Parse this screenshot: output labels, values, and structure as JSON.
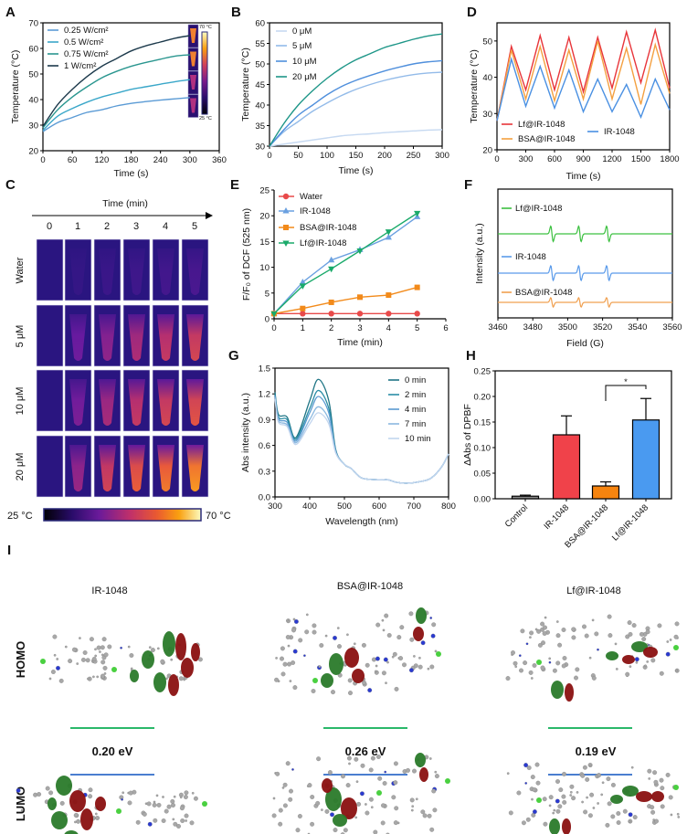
{
  "panel_labels": {
    "A": "A",
    "B": "B",
    "C": "C",
    "D": "D",
    "E": "E",
    "F": "F",
    "G": "G",
    "H": "H",
    "I": "I"
  },
  "chart_data": [
    {
      "id": "A",
      "type": "line",
      "xlabel": "Time (s)",
      "ylabel": "Temperature (°C)",
      "xlim": [
        0,
        360
      ],
      "ylim": [
        20,
        70
      ],
      "xticks": [
        "0",
        "60",
        "120",
        "180",
        "240",
        "300",
        "360"
      ],
      "yticks": [
        "20",
        "30",
        "40",
        "50",
        "60",
        "70"
      ],
      "x": [
        0,
        30,
        60,
        90,
        120,
        150,
        180,
        210,
        240,
        270,
        300
      ],
      "series": [
        {
          "name": "0.25 W/cm²",
          "color": "#5b9bd5",
          "values": [
            27.5,
            31,
            33,
            35,
            36,
            37.5,
            38.5,
            39.2,
            39.8,
            40.3,
            40.8
          ]
        },
        {
          "name": "0.5 W/cm²",
          "color": "#3aa7c9",
          "values": [
            28,
            33.5,
            36.5,
            39,
            41,
            42.5,
            44,
            45,
            46,
            47,
            47.8
          ]
        },
        {
          "name": "0.75 W/cm²",
          "color": "#2a968f",
          "values": [
            29,
            36,
            41,
            45,
            48.5,
            51,
            53,
            54.5,
            55.8,
            57,
            57.5
          ]
        },
        {
          "name": "1 W/cm²",
          "color": "#1d3a4c",
          "values": [
            29.5,
            38,
            44,
            49,
            53,
            56,
            59,
            61,
            62.5,
            64,
            65
          ]
        }
      ],
      "inset": {
        "top_label": "70 °C",
        "bottom_label": "25 °C"
      }
    },
    {
      "id": "B",
      "type": "line",
      "xlabel": "Time (s)",
      "ylabel": "Temperature (°C)",
      "xlim": [
        0,
        300
      ],
      "ylim": [
        30,
        60
      ],
      "xticks": [
        "0",
        "50",
        "100",
        "150",
        "200",
        "250",
        "300"
      ],
      "yticks": [
        "30",
        "35",
        "40",
        "45",
        "50",
        "55",
        "60"
      ],
      "x": [
        0,
        25,
        50,
        75,
        100,
        125,
        150,
        175,
        200,
        225,
        250,
        275,
        300
      ],
      "series": [
        {
          "name": "0 μM",
          "color": "#c6d9f1",
          "values": [
            30,
            30.5,
            31,
            31.5,
            32,
            32.5,
            32.8,
            33,
            33.3,
            33.5,
            33.7,
            33.9,
            34
          ]
        },
        {
          "name": "5 μM",
          "color": "#93bbe9",
          "values": [
            30,
            33.5,
            36,
            38.5,
            40.5,
            42.3,
            43.8,
            45,
            46,
            46.8,
            47.4,
            47.8,
            48
          ]
        },
        {
          "name": "10 μM",
          "color": "#4f8fdc",
          "values": [
            30,
            34,
            37.5,
            40,
            42.5,
            44.5,
            46,
            47.2,
            48.3,
            49.2,
            50,
            50.5,
            50.8
          ]
        },
        {
          "name": "20 μM",
          "color": "#1e9688",
          "values": [
            30,
            35.5,
            40,
            43.5,
            46.5,
            49,
            51,
            52.5,
            54,
            55,
            56,
            56.8,
            57.3
          ]
        }
      ]
    },
    {
      "id": "C",
      "type": "heatmap",
      "title": "Time (min)",
      "columns": [
        "0",
        "1",
        "2",
        "3",
        "4",
        "5"
      ],
      "rows": [
        "Water",
        "5 μM",
        "10 μM",
        "20 μM"
      ],
      "levels": [
        [
          0,
          0.05,
          0.08,
          0.1,
          0.12,
          0.15
        ],
        [
          0,
          0.32,
          0.42,
          0.52,
          0.6,
          0.66
        ],
        [
          0,
          0.36,
          0.5,
          0.6,
          0.66,
          0.72
        ],
        [
          0,
          0.45,
          0.65,
          0.76,
          0.83,
          0.9
        ]
      ],
      "colorbar": {
        "min_label": "25 °C",
        "max_label": "70 °C"
      }
    },
    {
      "id": "D",
      "type": "line",
      "xlabel": "Time (s)",
      "ylabel": "Temperature (°C)",
      "xlim": [
        0,
        1800
      ],
      "ylim": [
        20,
        55
      ],
      "xticks": [
        "0",
        "300",
        "600",
        "900",
        "1200",
        "1500",
        "1800"
      ],
      "yticks": [
        "20",
        "30",
        "40",
        "50"
      ],
      "x": [
        0,
        150,
        300,
        450,
        600,
        750,
        900,
        1050,
        1200,
        1350,
        1500,
        1650,
        1800
      ],
      "series": [
        {
          "name": "Lf@IR-1048",
          "color": "#e8353a",
          "values": [
            28,
            48.5,
            36.5,
            51.5,
            36.5,
            51,
            36,
            51,
            37,
            52.5,
            38.5,
            53,
            37
          ]
        },
        {
          "name": "BSA@IR-1048",
          "color": "#f4a040",
          "values": [
            28,
            47.5,
            34,
            48.5,
            33.5,
            47.5,
            34,
            50,
            34,
            48,
            32.5,
            49,
            35.5
          ]
        },
        {
          "name": "IR-1048",
          "color": "#4a90e2",
          "values": [
            28,
            45,
            32,
            43,
            31.5,
            42,
            30.5,
            39.5,
            30.5,
            38,
            29,
            39.5,
            31
          ]
        }
      ]
    },
    {
      "id": "E",
      "type": "line",
      "xlabel": "Time (min)",
      "ylabel": "F/F₀ of DCF (525 nm)",
      "xlim": [
        0,
        6
      ],
      "ylim": [
        0,
        25
      ],
      "xticks": [
        "0",
        "1",
        "2",
        "3",
        "4",
        "5",
        "6"
      ],
      "yticks": [
        "0",
        "5",
        "10",
        "15",
        "20",
        "25"
      ],
      "x": [
        0,
        1,
        2,
        3,
        4,
        5
      ],
      "series": [
        {
          "name": "Water",
          "color": "#e84a4a",
          "marker": "circle",
          "values": [
            1,
            1,
            1,
            1,
            1,
            1
          ]
        },
        {
          "name": "IR-1048",
          "color": "#6aa0e0",
          "marker": "triangle-up",
          "values": [
            1,
            7.1,
            11.4,
            13.4,
            15.8,
            19.8
          ]
        },
        {
          "name": "BSA@IR-1048",
          "color": "#f28a1a",
          "marker": "square",
          "values": [
            1,
            2,
            3.2,
            4.2,
            4.6,
            6.1
          ]
        },
        {
          "name": "Lf@IR-1048",
          "color": "#1aaa6a",
          "marker": "triangle-down",
          "values": [
            1,
            6.4,
            9.7,
            13.2,
            16.9,
            20.5
          ]
        }
      ]
    },
    {
      "id": "F",
      "type": "line",
      "xlabel": "Field (G)",
      "ylabel": "Intensity (a.u.)",
      "xlim": [
        3460,
        3560
      ],
      "xticks": [
        "3460",
        "3480",
        "3500",
        "3520",
        "3540",
        "3560"
      ],
      "line_positions_G": [
        3491,
        3507,
        3523
      ],
      "series": [
        {
          "name": "Lf@IR-1048",
          "color": "#3cc040",
          "relative_amplitude": 1.0
        },
        {
          "name": "IR-1048",
          "color": "#5b9bea",
          "relative_amplitude": 0.95
        },
        {
          "name": "BSA@IR-1048",
          "color": "#f0a050",
          "relative_amplitude": 0.6
        }
      ]
    },
    {
      "id": "G",
      "type": "line",
      "xlabel": "Wavelength (nm)",
      "ylabel": "Abs intensity (a.u.)",
      "xlim": [
        300,
        800
      ],
      "ylim": [
        0,
        1.5
      ],
      "xticks": [
        "300",
        "400",
        "500",
        "600",
        "700",
        "800"
      ],
      "yticks": [
        "0.0",
        "0.3",
        "0.6",
        "0.9",
        "1.2",
        "1.5"
      ],
      "x": [
        300,
        310,
        335,
        360,
        400,
        425,
        455,
        475,
        500,
        520,
        550,
        600,
        625,
        650,
        680,
        720,
        750,
        780,
        800
      ],
      "series": [
        {
          "name": "0 min",
          "color": "#1f7585",
          "values": [
            1.22,
            0.96,
            0.93,
            0.69,
            1.12,
            1.37,
            1.12,
            0.55,
            0.38,
            0.33,
            0.22,
            0.2,
            0.2,
            0.17,
            0.16,
            0.18,
            0.22,
            0.35,
            0.5
          ]
        },
        {
          "name": "2 min",
          "color": "#2a8ea6",
          "values": [
            1.2,
            0.93,
            0.9,
            0.67,
            1.03,
            1.24,
            1.03,
            0.54,
            0.38,
            0.33,
            0.22,
            0.2,
            0.2,
            0.17,
            0.16,
            0.18,
            0.22,
            0.35,
            0.5
          ]
        },
        {
          "name": "4 min",
          "color": "#5a9ad0",
          "values": [
            1.18,
            0.91,
            0.87,
            0.65,
            0.98,
            1.17,
            0.98,
            0.53,
            0.38,
            0.33,
            0.22,
            0.2,
            0.2,
            0.17,
            0.16,
            0.18,
            0.22,
            0.35,
            0.5
          ]
        },
        {
          "name": "7 min",
          "color": "#8ab8e0",
          "values": [
            1.16,
            0.89,
            0.84,
            0.63,
            0.9,
            1.05,
            0.9,
            0.52,
            0.38,
            0.33,
            0.22,
            0.2,
            0.2,
            0.17,
            0.16,
            0.18,
            0.22,
            0.35,
            0.5
          ]
        },
        {
          "name": "10 min",
          "color": "#c2d5ee",
          "values": [
            1.14,
            0.87,
            0.82,
            0.61,
            0.85,
            0.98,
            0.85,
            0.51,
            0.38,
            0.33,
            0.22,
            0.2,
            0.2,
            0.17,
            0.16,
            0.18,
            0.22,
            0.35,
            0.5
          ]
        }
      ]
    },
    {
      "id": "H",
      "type": "bar",
      "ylabel": "ΔAbs of DPBF",
      "ylim": [
        0,
        0.25
      ],
      "yticks": [
        "0.00",
        "0.05",
        "0.10",
        "0.15",
        "0.20",
        "0.25"
      ],
      "categories": [
        "Control",
        "IR-1048",
        "BSA@IR-1048",
        "Lf@IR-1048"
      ],
      "values": [
        0.005,
        0.125,
        0.025,
        0.154
      ],
      "errors": [
        0.002,
        0.037,
        0.008,
        0.042
      ],
      "colors": [
        "#8a8a8a",
        "#f0424a",
        "#f6840f",
        "#4a9af0"
      ],
      "significance": {
        "between": [
          "BSA@IR-1048",
          "Lf@IR-1048"
        ],
        "label": "*"
      }
    }
  ],
  "panel_I": {
    "molecules": [
      "IR-1048",
      "BSA@IR-1048",
      "Lf@IR-1048"
    ],
    "orbitals": [
      "HOMO",
      "LUMO"
    ],
    "gaps": [
      "0.20 eV",
      "0.26 eV",
      "0.19 eV"
    ],
    "colors": {
      "homo_level": "#2ab86a",
      "lumo_level": "#4a7ed0",
      "lobe_positive": "#2a7a2a",
      "lobe_negative": "#8a1010"
    }
  }
}
